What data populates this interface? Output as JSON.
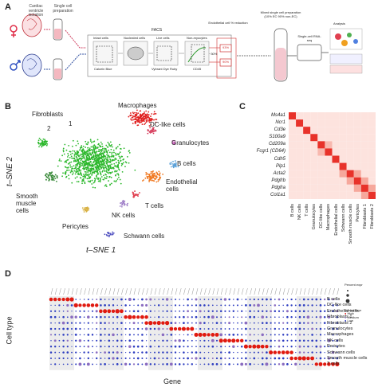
{
  "panel_letters": {
    "a": "A",
    "b": "B",
    "c": "C",
    "d": "D"
  },
  "panel_a": {
    "step1_label": "Cardiac ventricle isolation",
    "step2_label": "Single cell preparation",
    "facs_title": "FACS",
    "gate_labels": [
      "Intact cells",
      "Nucleated cells",
      "Live cells",
      "Non-myocytes"
    ],
    "axis_labels": [
      "Calcein Blue",
      "Vybrant Dye Ruby",
      "CD45",
      "SSC-A",
      "FSC-A",
      "CD31"
    ],
    "gate_percent_30": "~30%",
    "gate_percent_93": "93%",
    "gate_percent_90": "90%",
    "endo_label": "Endothelial cell % reduction",
    "mixed_label": "Mixed single cell preparation (10% EC 90% non-EC)",
    "rnaseq_label": "Single-cell RNA-seq",
    "analysis_label": "Analysis"
  },
  "panel_b": {
    "ylabel": "t–SNE 2",
    "xlabel": "t–SNE 1",
    "clusters": [
      {
        "name": "Fibroblasts",
        "color": "#2db82d"
      },
      {
        "name": "Macrophages",
        "color": "#e02020"
      },
      {
        "name": "DC-like cells",
        "color": "#d63a5a"
      },
      {
        "name": "Granulocytes",
        "color": "#d060c0"
      },
      {
        "name": "B cells",
        "color": "#5aa0d8"
      },
      {
        "name": "Endothelial cells",
        "color": "#f07820"
      },
      {
        "name": "Smooth muscle cells",
        "color": "#3a8a3a"
      },
      {
        "name": "NK cells",
        "color": "#a080c8"
      },
      {
        "name": "T cells",
        "color": "#e04050"
      },
      {
        "name": "Pericytes",
        "color": "#d8b040"
      },
      {
        "name": "Schwann cells",
        "color": "#5050c0"
      }
    ],
    "fib_sub1": "1",
    "fib_sub2": "2"
  },
  "panel_c": {
    "genes": [
      "Ms4a1",
      "Ncr1",
      "Cd3e",
      "S100a9",
      "Cd209a",
      "Fcgr1 (CD64)",
      "Cdh5",
      "Plp1",
      "Acta2",
      "Pdgfrb",
      "Pdgfra",
      "Col1a1"
    ],
    "cell_types": [
      "B cells",
      "NK cells",
      "T cells",
      "Granulocytes",
      "DC-like cells",
      "Macrophages",
      "Endothelial cells",
      "Schwann cells",
      "Smooth muscle cells",
      "Pericytes",
      "Fibroblasts 1",
      "Fibroblasts 2"
    ]
  },
  "panel_d": {
    "ylabel": "Cell type",
    "xlabel": "Gene",
    "cell_types": [
      "B cells",
      "DC-like cells",
      "Endothelial cells",
      "Fibroblasts 1",
      "Fibroblasts 2",
      "Granulocytes",
      "Macrophages",
      "NK cells",
      "Pericytes",
      "Schwann cells",
      "Smooth muscle cells",
      "T cells"
    ],
    "legend_percent": "Percent expr",
    "legend_scaled": "Scaled expr",
    "legend_high": "High",
    "legend_medium": "Medium",
    "legend_low": "Low",
    "legend_sizes": [
      "0",
      "25",
      "50",
      "75"
    ]
  }
}
